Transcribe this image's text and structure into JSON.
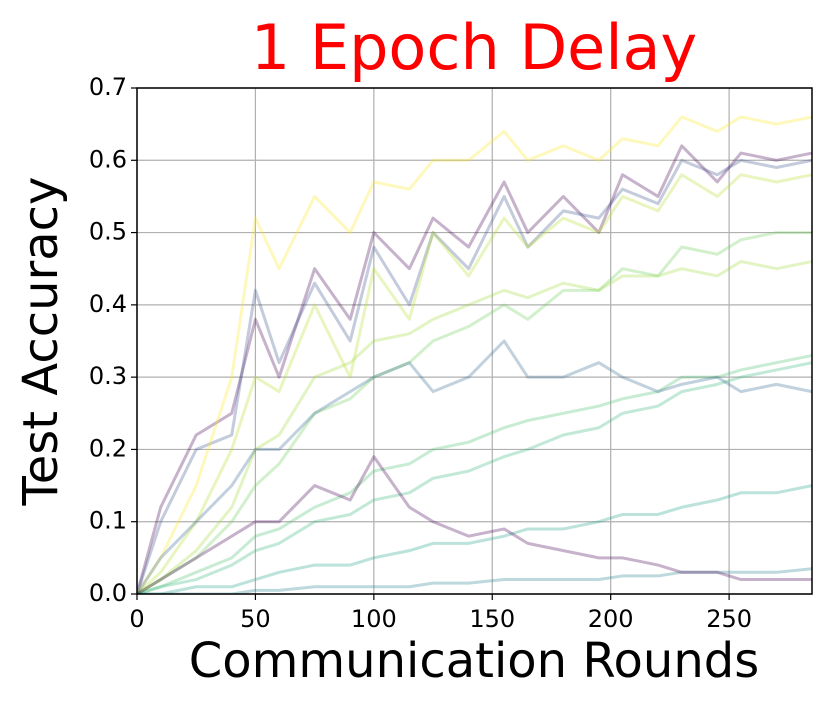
{
  "chart_data": {
    "type": "line",
    "title": "1 Epoch Delay",
    "title_color": "#ff0000",
    "xlabel": "Communication Rounds",
    "ylabel": "Test Accuracy",
    "x": [
      0,
      10,
      25,
      40,
      50,
      60,
      75,
      90,
      100,
      115,
      125,
      140,
      155,
      165,
      180,
      195,
      205,
      220,
      230,
      245,
      255,
      270,
      285
    ],
    "series": [
      {
        "color": "#440154",
        "values": [
          0,
          0.12,
          0.22,
          0.25,
          0.38,
          0.3,
          0.45,
          0.38,
          0.5,
          0.45,
          0.52,
          0.48,
          0.57,
          0.5,
          0.55,
          0.5,
          0.58,
          0.55,
          0.62,
          0.57,
          0.61,
          0.6,
          0.61
        ]
      },
      {
        "color": "#3b528b",
        "values": [
          0,
          0.1,
          0.2,
          0.22,
          0.42,
          0.32,
          0.43,
          0.35,
          0.48,
          0.4,
          0.5,
          0.45,
          0.55,
          0.48,
          0.53,
          0.52,
          0.56,
          0.54,
          0.6,
          0.58,
          0.6,
          0.59,
          0.6
        ]
      },
      {
        "color": "#fde725",
        "values": [
          0,
          0.05,
          0.15,
          0.3,
          0.52,
          0.45,
          0.55,
          0.5,
          0.57,
          0.56,
          0.6,
          0.6,
          0.64,
          0.6,
          0.62,
          0.6,
          0.63,
          0.62,
          0.66,
          0.64,
          0.66,
          0.65,
          0.66
        ]
      },
      {
        "color": "#b5de2b",
        "values": [
          0,
          0.03,
          0.1,
          0.2,
          0.3,
          0.28,
          0.4,
          0.3,
          0.45,
          0.38,
          0.5,
          0.44,
          0.52,
          0.48,
          0.52,
          0.5,
          0.55,
          0.53,
          0.58,
          0.55,
          0.58,
          0.57,
          0.58
        ]
      },
      {
        "color": "#a0da39",
        "values": [
          0,
          0.02,
          0.06,
          0.12,
          0.2,
          0.22,
          0.3,
          0.32,
          0.35,
          0.36,
          0.38,
          0.4,
          0.42,
          0.41,
          0.43,
          0.42,
          0.44,
          0.44,
          0.45,
          0.44,
          0.46,
          0.45,
          0.46
        ]
      },
      {
        "color": "#6ece58",
        "values": [
          0,
          0.02,
          0.05,
          0.1,
          0.15,
          0.18,
          0.25,
          0.27,
          0.3,
          0.32,
          0.35,
          0.37,
          0.4,
          0.38,
          0.42,
          0.42,
          0.45,
          0.44,
          0.48,
          0.47,
          0.49,
          0.5,
          0.5
        ]
      },
      {
        "color": "#4ac16d",
        "values": [
          0,
          0.01,
          0.03,
          0.05,
          0.08,
          0.09,
          0.12,
          0.14,
          0.17,
          0.18,
          0.2,
          0.21,
          0.23,
          0.24,
          0.25,
          0.26,
          0.27,
          0.28,
          0.3,
          0.3,
          0.31,
          0.32,
          0.33
        ]
      },
      {
        "color": "#35b779",
        "values": [
          0,
          0.01,
          0.02,
          0.04,
          0.06,
          0.07,
          0.1,
          0.11,
          0.13,
          0.14,
          0.16,
          0.17,
          0.19,
          0.2,
          0.22,
          0.23,
          0.25,
          0.26,
          0.28,
          0.29,
          0.3,
          0.31,
          0.32
        ]
      },
      {
        "color": "#31688e",
        "values": [
          0,
          0.05,
          0.1,
          0.15,
          0.2,
          0.2,
          0.25,
          0.28,
          0.3,
          0.32,
          0.28,
          0.3,
          0.35,
          0.3,
          0.3,
          0.32,
          0.3,
          0.28,
          0.29,
          0.3,
          0.28,
          0.29,
          0.28
        ]
      },
      {
        "color": "#1f9e89",
        "values": [
          0,
          0,
          0.01,
          0.01,
          0.02,
          0.03,
          0.04,
          0.04,
          0.05,
          0.06,
          0.07,
          0.07,
          0.08,
          0.09,
          0.09,
          0.1,
          0.11,
          0.11,
          0.12,
          0.13,
          0.14,
          0.14,
          0.15
        ]
      },
      {
        "color": "#26828e",
        "values": [
          0,
          0,
          0,
          0,
          0.005,
          0.005,
          0.01,
          0.01,
          0.01,
          0.01,
          0.015,
          0.015,
          0.02,
          0.02,
          0.02,
          0.02,
          0.025,
          0.025,
          0.03,
          0.03,
          0.03,
          0.03,
          0.035
        ]
      },
      {
        "color": "#440154",
        "values": [
          0,
          0.02,
          0.05,
          0.08,
          0.1,
          0.1,
          0.15,
          0.13,
          0.19,
          0.12,
          0.1,
          0.08,
          0.09,
          0.07,
          0.06,
          0.05,
          0.05,
          0.04,
          0.03,
          0.03,
          0.02,
          0.02,
          0.02
        ]
      }
    ],
    "xlim": [
      0,
      285
    ],
    "ylim": [
      0,
      0.7
    ],
    "xticks": [
      0,
      50,
      100,
      150,
      200,
      250
    ],
    "yticks": [
      {
        "value": 0,
        "label": "0.0"
      },
      0.1,
      0.2,
      0.3,
      0.4,
      0.5,
      0.6,
      0.7
    ],
    "grid": true,
    "line_opacity": 0.3
  }
}
